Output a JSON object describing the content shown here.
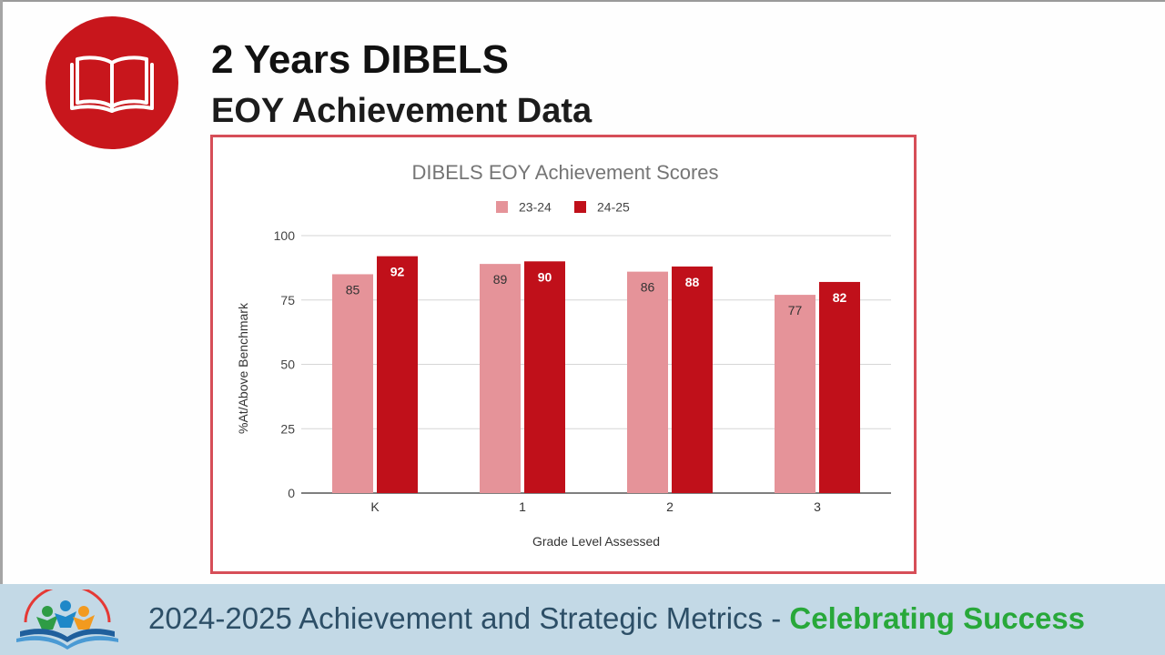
{
  "slide": {
    "title": "2 Years DIBELS",
    "subtitle": "EOY Achievement Data",
    "badge_icon": "open-book-icon",
    "accent_color": "#c8161c"
  },
  "chart_data": {
    "type": "bar",
    "title": "DIBELS EOY Achievement Scores",
    "xlabel": "Grade Level Assessed",
    "ylabel": "%At/Above Benchmark",
    "categories": [
      "K",
      "1",
      "2",
      "3"
    ],
    "ylim": [
      0,
      100
    ],
    "yticks": [
      0,
      25,
      50,
      75,
      100
    ],
    "grid": true,
    "legend_position": "top",
    "series": [
      {
        "name": "23-24",
        "values": [
          85,
          89,
          86,
          77
        ],
        "color": "#e59399"
      },
      {
        "name": "24-25",
        "values": [
          92,
          90,
          88,
          82
        ],
        "color": "#c0101a"
      }
    ]
  },
  "footer": {
    "text": "2024-2025 Achievement and Strategic Metrics - ",
    "highlight": "Celebrating Success",
    "logo_icon": "reading-students-logo-icon"
  }
}
